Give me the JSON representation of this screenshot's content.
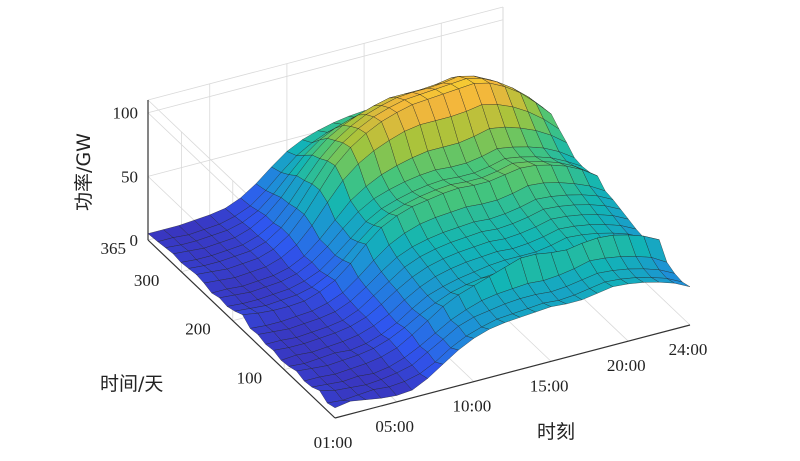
{
  "chart_data": {
    "type": "surface3d",
    "title": "",
    "xlabel": "时刻",
    "ylabel": "时间/天",
    "zlabel": "功率/GW",
    "x_ticks": [
      "01:00",
      "05:00",
      "10:00",
      "15:00",
      "20:00",
      "24:00"
    ],
    "x_tick_hours": [
      1,
      5,
      10,
      15,
      20,
      24
    ],
    "y_ticks": [
      "100",
      "200",
      "300",
      "365"
    ],
    "y_tick_values": [
      100,
      200,
      300,
      365
    ],
    "z_ticks": [
      "0",
      "50",
      "100"
    ],
    "z_tick_values": [
      0,
      50,
      100
    ],
    "xlim": [
      1,
      24
    ],
    "ylim": [
      1,
      365
    ],
    "zlim": [
      0,
      110
    ],
    "grid": true,
    "colormap": "parula",
    "colormap_stops": [
      "#3e26a8",
      "#2f57f0",
      "#1e8fd8",
      "#12b5b5",
      "#47c57a",
      "#a6c43b",
      "#f3b63c",
      "#f9e724"
    ],
    "edge_color": "#1f1f1f",
    "hours": [
      1,
      2,
      3,
      4,
      5,
      6,
      7,
      8,
      9,
      10,
      11,
      12,
      13,
      14,
      15,
      16,
      17,
      18,
      19,
      20,
      21,
      22,
      23,
      24
    ],
    "days": [
      1,
      16,
      31,
      46,
      61,
      76,
      91,
      106,
      121,
      136,
      151,
      166,
      181,
      196,
      211,
      226,
      241,
      256,
      271,
      286,
      301,
      316,
      331,
      346,
      365
    ],
    "power_gw": [
      [
        8,
        10,
        8,
        6,
        5,
        6,
        12,
        20,
        28,
        34,
        38,
        40,
        41,
        42,
        43,
        42,
        42,
        44,
        46,
        45,
        43,
        40,
        36,
        30
      ],
      [
        6,
        5,
        6,
        7,
        6,
        7,
        10,
        16,
        24,
        30,
        34,
        37,
        38,
        39,
        40,
        39,
        40,
        42,
        44,
        43,
        41,
        38,
        34,
        28
      ],
      [
        10,
        7,
        6,
        5,
        6,
        8,
        11,
        18,
        25,
        32,
        36,
        38,
        40,
        41,
        41,
        40,
        41,
        43,
        45,
        44,
        42,
        39,
        35,
        29
      ],
      [
        7,
        6,
        5,
        6,
        5,
        7,
        11,
        17,
        24,
        31,
        36,
        40,
        42,
        43,
        44,
        43,
        44,
        46,
        49,
        48,
        46,
        43,
        39,
        32
      ],
      [
        6,
        6,
        5,
        6,
        7,
        9,
        13,
        20,
        28,
        36,
        42,
        46,
        50,
        54,
        58,
        58,
        56,
        55,
        57,
        58,
        57,
        54,
        50,
        44
      ],
      [
        8,
        7,
        6,
        7,
        8,
        10,
        14,
        20,
        27,
        33,
        38,
        41,
        43,
        44,
        45,
        44,
        44,
        46,
        48,
        47,
        45,
        42,
        38,
        32
      ],
      [
        6,
        5,
        6,
        7,
        6,
        8,
        12,
        18,
        26,
        33,
        37,
        40,
        42,
        44,
        45,
        45,
        45,
        47,
        50,
        49,
        47,
        44,
        40,
        34
      ],
      [
        5,
        6,
        5,
        6,
        7,
        9,
        13,
        19,
        27,
        34,
        39,
        42,
        44,
        45,
        46,
        45,
        46,
        48,
        51,
        50,
        48,
        45,
        41,
        35
      ],
      [
        7,
        6,
        6,
        7,
        8,
        10,
        14,
        21,
        29,
        36,
        41,
        44,
        46,
        47,
        48,
        47,
        48,
        50,
        53,
        52,
        50,
        47,
        43,
        37
      ],
      [
        6,
        6,
        5,
        6,
        7,
        9,
        14,
        22,
        30,
        38,
        43,
        46,
        48,
        49,
        50,
        49,
        50,
        52,
        55,
        54,
        52,
        49,
        45,
        39
      ],
      [
        8,
        7,
        6,
        7,
        8,
        10,
        15,
        23,
        32,
        40,
        45,
        48,
        50,
        51,
        52,
        51,
        52,
        54,
        57,
        56,
        54,
        51,
        47,
        41
      ],
      [
        7,
        6,
        6,
        7,
        8,
        11,
        16,
        25,
        35,
        44,
        50,
        54,
        56,
        57,
        58,
        57,
        57,
        59,
        62,
        61,
        58,
        54,
        49,
        42
      ],
      [
        12,
        10,
        9,
        9,
        10,
        14,
        20,
        30,
        42,
        52,
        58,
        62,
        64,
        66,
        67,
        66,
        66,
        68,
        70,
        69,
        66,
        62,
        56,
        48
      ],
      [
        9,
        8,
        7,
        8,
        9,
        12,
        18,
        27,
        38,
        48,
        54,
        58,
        61,
        63,
        64,
        63,
        63,
        65,
        68,
        66,
        63,
        59,
        53,
        45
      ],
      [
        7,
        6,
        6,
        7,
        8,
        11,
        16,
        25,
        35,
        45,
        52,
        56,
        59,
        61,
        62,
        61,
        61,
        63,
        66,
        64,
        61,
        57,
        51,
        44
      ],
      [
        8,
        7,
        6,
        7,
        8,
        11,
        17,
        26,
        37,
        47,
        54,
        58,
        61,
        63,
        64,
        63,
        63,
        65,
        68,
        66,
        63,
        59,
        53,
        45
      ],
      [
        6,
        6,
        5,
        6,
        7,
        10,
        16,
        26,
        38,
        50,
        58,
        64,
        68,
        71,
        73,
        73,
        73,
        75,
        78,
        76,
        72,
        67,
        60,
        51
      ],
      [
        8,
        7,
        6,
        7,
        8,
        12,
        19,
        31,
        46,
        60,
        70,
        77,
        82,
        86,
        88,
        88,
        88,
        89,
        91,
        88,
        83,
        76,
        67,
        56
      ],
      [
        9,
        8,
        7,
        8,
        9,
        13,
        21,
        34,
        50,
        66,
        77,
        85,
        91,
        95,
        98,
        99,
        100,
        101,
        102,
        99,
        93,
        85,
        74,
        62
      ],
      [
        8,
        7,
        7,
        8,
        9,
        13,
        21,
        33,
        49,
        64,
        75,
        83,
        89,
        93,
        96,
        97,
        98,
        99,
        100,
        97,
        91,
        83,
        73,
        61
      ],
      [
        7,
        6,
        6,
        7,
        8,
        12,
        19,
        31,
        46,
        60,
        71,
        79,
        85,
        89,
        92,
        93,
        93,
        94,
        96,
        93,
        87,
        79,
        69,
        58
      ],
      [
        8,
        7,
        6,
        7,
        8,
        12,
        19,
        30,
        44,
        57,
        67,
        74,
        79,
        83,
        86,
        86,
        86,
        87,
        89,
        86,
        80,
        73,
        64,
        54
      ],
      [
        7,
        6,
        6,
        7,
        8,
        11,
        17,
        27,
        39,
        51,
        60,
        66,
        70,
        73,
        75,
        75,
        75,
        76,
        78,
        75,
        70,
        64,
        56,
        47
      ],
      [
        6,
        6,
        5,
        6,
        7,
        10,
        15,
        24,
        35,
        45,
        52,
        57,
        60,
        62,
        64,
        63,
        63,
        64,
        66,
        64,
        60,
        55,
        48,
        40
      ],
      [
        5,
        5,
        5,
        6,
        7,
        9,
        14,
        22,
        32,
        41,
        47,
        51,
        54,
        56,
        57,
        56,
        56,
        57,
        59,
        57,
        53,
        49,
        43,
        36
      ]
    ]
  }
}
